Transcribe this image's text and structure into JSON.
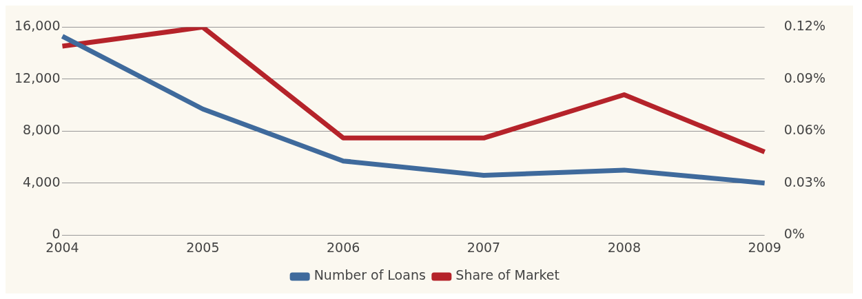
{
  "chart_data": {
    "type": "line",
    "categories": [
      "2004",
      "2005",
      "2006",
      "2007",
      "2008",
      "2009"
    ],
    "series": [
      {
        "name": "Number of Loans",
        "color": "#3f6a9c",
        "values": [
          15300,
          9700,
          5700,
          4600,
          5000,
          4000
        ]
      },
      {
        "name": "Share of Market",
        "color": "#b5232a",
        "axis": "y2",
        "values": [
          0.109,
          0.12,
          0.056,
          0.056,
          0.081,
          0.048
        ]
      }
    ],
    "ylim": [
      0,
      16000
    ],
    "yticks": [
      {
        "value": 0,
        "label": "0"
      },
      {
        "value": 4000,
        "label": "4,000"
      },
      {
        "value": 8000,
        "label": "8,000"
      },
      {
        "value": 12000,
        "label": "12,000"
      },
      {
        "value": 16000,
        "label": "16,000"
      }
    ],
    "y2lim": [
      0,
      0.12
    ],
    "y2ticks": [
      {
        "value": 0,
        "label": "0%"
      },
      {
        "value": 0.03,
        "label": "0.03%"
      },
      {
        "value": 0.06,
        "label": "0.06%"
      },
      {
        "value": 0.09,
        "label": "0.09%"
      },
      {
        "value": 0.12,
        "label": "0.12%"
      }
    ],
    "grid": "y",
    "legend": "bottom",
    "marker": "none",
    "line_style": "solid"
  }
}
